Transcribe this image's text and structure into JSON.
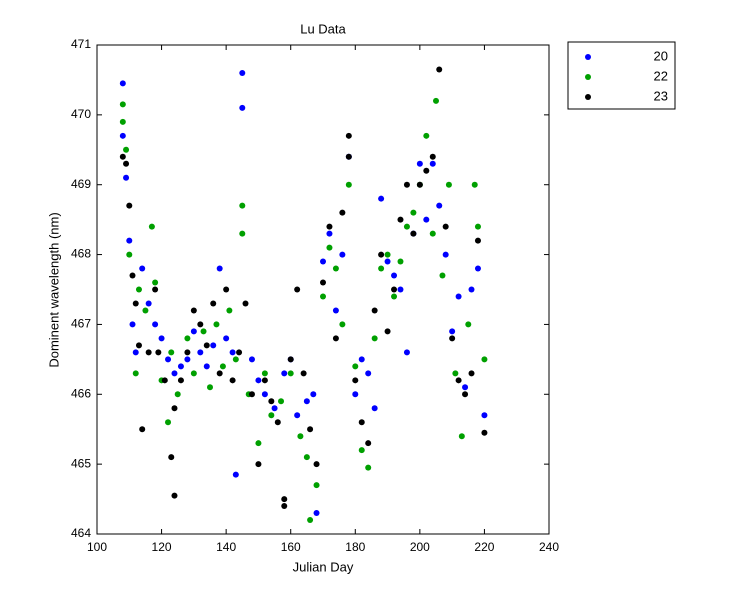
{
  "chart_data": {
    "type": "scatter",
    "title": "Lu Data",
    "x_label": "Julian Day",
    "y_label": "Dominent wavelength (nm)",
    "xlim": [
      100,
      240
    ],
    "xticks": [
      100,
      120,
      140,
      160,
      180,
      200,
      220,
      240
    ],
    "ylim": [
      464,
      471
    ],
    "yticks": [
      464,
      465,
      466,
      467,
      468,
      469,
      470,
      471
    ],
    "legend": "outside-top-right",
    "series": [
      {
        "name": "20",
        "color": "#0000ff",
        "x": [
          108,
          108,
          109,
          110,
          111,
          112,
          114,
          116,
          118,
          120,
          122,
          124,
          126,
          128,
          130,
          132,
          134,
          136,
          138,
          140,
          142,
          143,
          145,
          145,
          148,
          150,
          152,
          155,
          158,
          160,
          162,
          165,
          167,
          168,
          170,
          172,
          174,
          176,
          178,
          180,
          182,
          184,
          186,
          188,
          190,
          192,
          194,
          196,
          198,
          200,
          202,
          204,
          206,
          208,
          210,
          212,
          214,
          216,
          218,
          220
        ],
        "values": [
          470.45,
          469.7,
          469.1,
          468.2,
          467.0,
          466.6,
          467.8,
          467.3,
          467.0,
          466.8,
          466.5,
          466.3,
          466.4,
          466.5,
          466.9,
          466.6,
          466.4,
          466.7,
          467.8,
          466.8,
          466.6,
          464.85,
          470.6,
          470.1,
          466.5,
          466.2,
          466.0,
          465.8,
          466.3,
          466.5,
          465.7,
          465.9,
          466.0,
          464.3,
          467.9,
          468.3,
          467.2,
          468.0,
          469.4,
          466.0,
          466.5,
          466.3,
          465.8,
          468.8,
          467.9,
          467.7,
          467.5,
          466.6,
          468.3,
          469.3,
          468.5,
          469.3,
          468.7,
          468.0,
          466.9,
          467.4,
          466.1,
          467.5,
          467.8,
          465.7
        ]
      },
      {
        "name": "22",
        "color": "#00a000",
        "x": [
          108,
          108,
          109,
          110,
          112,
          113,
          115,
          117,
          118,
          120,
          122,
          123,
          125,
          128,
          130,
          133,
          135,
          137,
          139,
          141,
          143,
          145,
          145,
          147,
          150,
          152,
          154,
          157,
          160,
          163,
          165,
          166,
          168,
          170,
          172,
          174,
          176,
          178,
          180,
          182,
          184,
          186,
          188,
          190,
          192,
          194,
          196,
          198,
          200,
          202,
          204,
          205,
          207,
          209,
          211,
          213,
          215,
          217,
          218,
          220
        ],
        "values": [
          470.15,
          469.9,
          469.5,
          468.0,
          466.3,
          467.5,
          467.2,
          468.4,
          467.6,
          466.2,
          465.6,
          466.6,
          466.0,
          466.8,
          466.3,
          466.9,
          466.1,
          467.0,
          466.4,
          467.2,
          466.5,
          468.7,
          468.3,
          466.0,
          465.3,
          466.3,
          465.7,
          465.9,
          466.3,
          465.4,
          465.1,
          464.2,
          464.7,
          467.4,
          468.1,
          467.8,
          467.0,
          469.0,
          466.4,
          465.2,
          464.95,
          466.8,
          467.8,
          468.0,
          467.4,
          467.9,
          468.4,
          468.6,
          469.0,
          469.7,
          468.3,
          470.2,
          467.7,
          469.0,
          466.3,
          465.4,
          467.0,
          469.0,
          468.4,
          466.5
        ]
      },
      {
        "name": "23",
        "color": "#000000",
        "x": [
          108,
          109,
          110,
          111,
          112,
          113,
          114,
          116,
          118,
          119,
          121,
          123,
          124,
          124,
          126,
          128,
          130,
          132,
          134,
          136,
          138,
          140,
          142,
          144,
          146,
          148,
          150,
          152,
          154,
          156,
          158,
          158,
          160,
          162,
          164,
          166,
          168,
          170,
          172,
          174,
          176,
          178,
          178,
          180,
          182,
          184,
          186,
          188,
          190,
          192,
          194,
          196,
          198,
          200,
          202,
          204,
          206,
          208,
          210,
          212,
          214,
          216,
          218,
          220
        ],
        "values": [
          469.4,
          469.3,
          468.7,
          467.7,
          467.3,
          466.7,
          465.5,
          466.6,
          467.5,
          466.6,
          466.2,
          465.1,
          464.55,
          465.8,
          466.2,
          466.6,
          467.2,
          467.0,
          466.7,
          467.3,
          466.3,
          467.5,
          466.2,
          466.6,
          467.3,
          466.0,
          465.0,
          466.2,
          465.9,
          465.6,
          464.4,
          464.5,
          466.5,
          467.5,
          466.3,
          465.5,
          465.0,
          467.6,
          468.4,
          466.8,
          468.6,
          469.7,
          469.4,
          466.2,
          465.6,
          465.3,
          467.2,
          468.0,
          466.9,
          467.5,
          468.5,
          469.0,
          468.3,
          469.0,
          469.2,
          469.4,
          470.65,
          468.4,
          466.8,
          466.2,
          466.0,
          466.3,
          468.2,
          465.45
        ]
      }
    ]
  }
}
